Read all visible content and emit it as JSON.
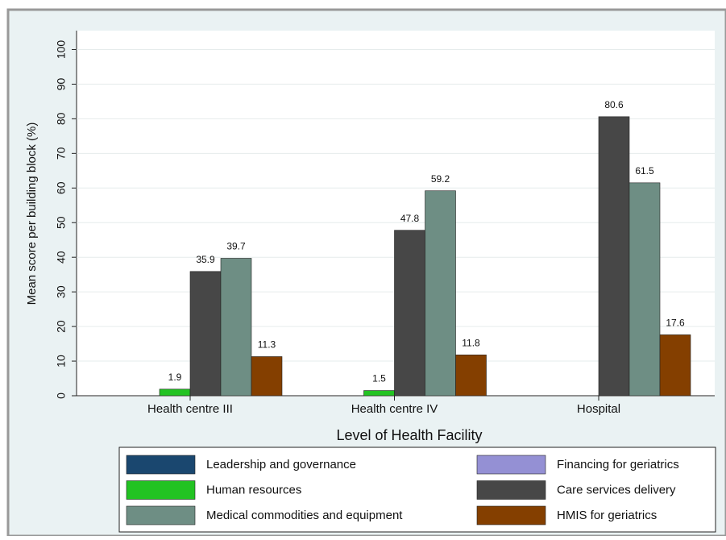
{
  "chart_data": {
    "type": "bar",
    "x_label": "Level of Health Facility",
    "y_label": "Mean score per building block (%)",
    "categories": [
      "Health centre III",
      "Health centre IV",
      "Hospital"
    ],
    "series": [
      {
        "name": "Leadership and governance",
        "color": "#1a476f",
        "values": [
          null,
          null,
          null
        ]
      },
      {
        "name": "Financing for geriatrics",
        "color": "#9490d4",
        "values": [
          null,
          null,
          null
        ]
      },
      {
        "name": "Human resources",
        "color": "#22c322",
        "values": [
          1.9,
          1.5,
          null
        ]
      },
      {
        "name": "Care services delivery",
        "color": "#474747",
        "values": [
          35.9,
          47.8,
          80.6
        ]
      },
      {
        "name": "Medical commodities and equipment",
        "color": "#6e8e84",
        "values": [
          39.7,
          59.2,
          61.5
        ]
      },
      {
        "name": "HMIS for geriatrics",
        "color": "#843f00",
        "values": [
          11.3,
          11.8,
          17.6
        ]
      }
    ],
    "ylim": [
      0,
      105
    ],
    "yticks": [
      0,
      10,
      20,
      30,
      40,
      50,
      60,
      70,
      80,
      90,
      100
    ],
    "grid": true
  }
}
